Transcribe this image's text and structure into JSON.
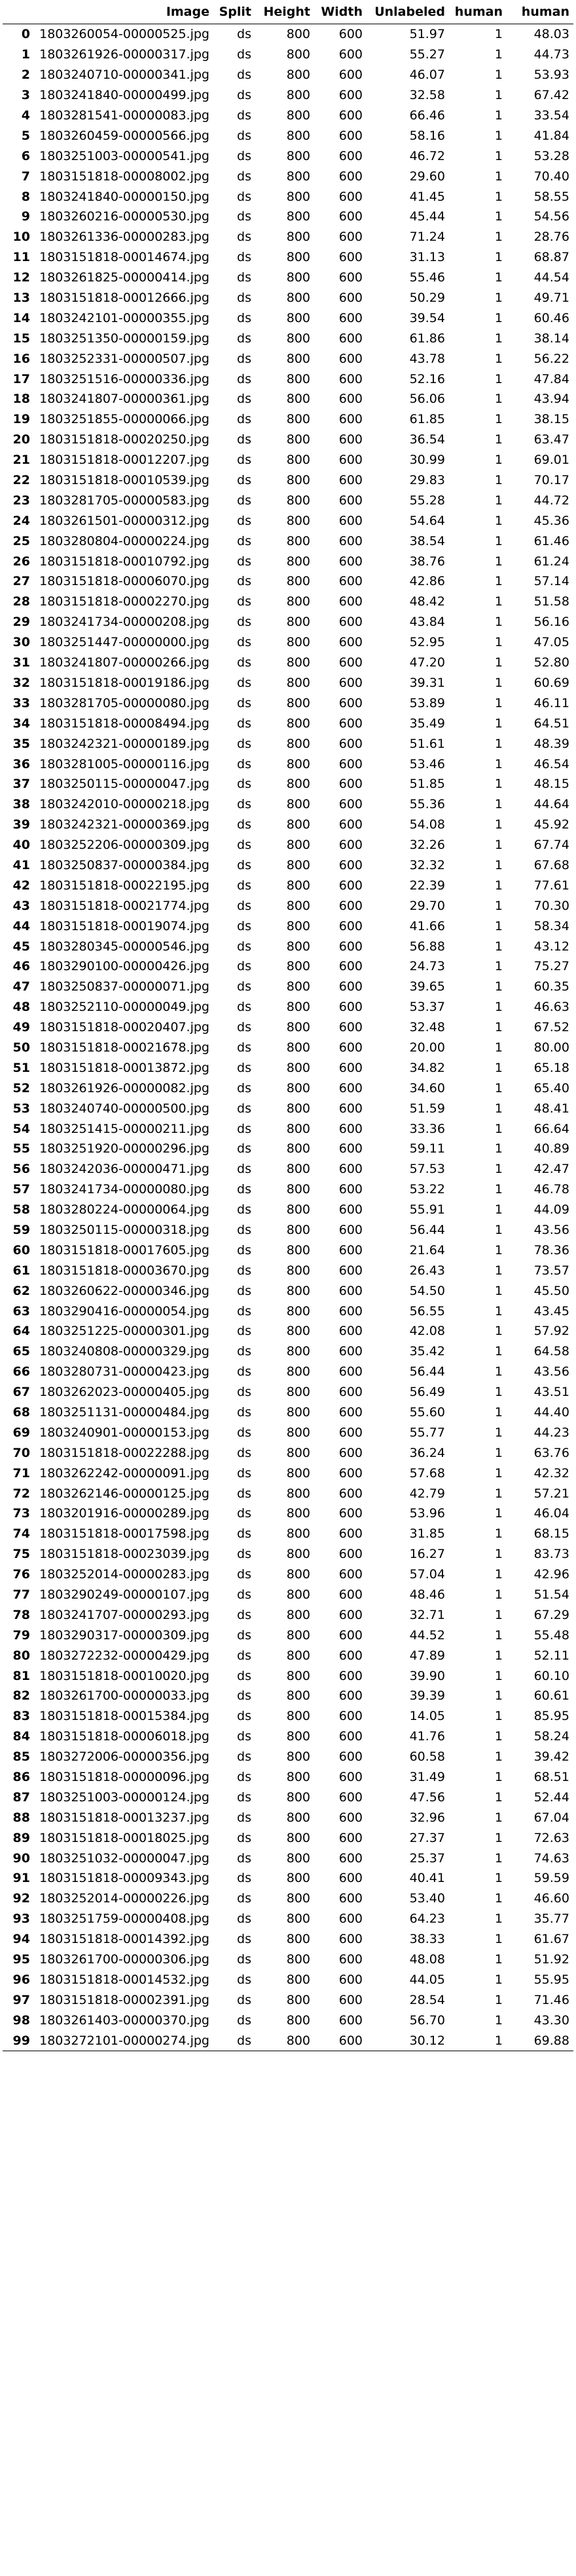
{
  "columns": [
    "",
    "Image",
    "Split",
    "Height",
    "Width",
    "Unlabeled",
    "human",
    "human"
  ],
  "rows": [
    [
      "0",
      "1803260054-00000525.jpg",
      "ds",
      "800",
      "600",
      "51.97",
      "1",
      "48.03"
    ],
    [
      "1",
      "1803261926-00000317.jpg",
      "ds",
      "800",
      "600",
      "55.27",
      "1",
      "44.73"
    ],
    [
      "2",
      "1803240710-00000341.jpg",
      "ds",
      "800",
      "600",
      "46.07",
      "1",
      "53.93"
    ],
    [
      "3",
      "1803241840-00000499.jpg",
      "ds",
      "800",
      "600",
      "32.58",
      "1",
      "67.42"
    ],
    [
      "4",
      "1803281541-00000083.jpg",
      "ds",
      "800",
      "600",
      "66.46",
      "1",
      "33.54"
    ],
    [
      "5",
      "1803260459-00000566.jpg",
      "ds",
      "800",
      "600",
      "58.16",
      "1",
      "41.84"
    ],
    [
      "6",
      "1803251003-00000541.jpg",
      "ds",
      "800",
      "600",
      "46.72",
      "1",
      "53.28"
    ],
    [
      "7",
      "1803151818-00008002.jpg",
      "ds",
      "800",
      "600",
      "29.60",
      "1",
      "70.40"
    ],
    [
      "8",
      "1803241840-00000150.jpg",
      "ds",
      "800",
      "600",
      "41.45",
      "1",
      "58.55"
    ],
    [
      "9",
      "1803260216-00000530.jpg",
      "ds",
      "800",
      "600",
      "45.44",
      "1",
      "54.56"
    ],
    [
      "10",
      "1803261336-00000283.jpg",
      "ds",
      "800",
      "600",
      "71.24",
      "1",
      "28.76"
    ],
    [
      "11",
      "1803151818-00014674.jpg",
      "ds",
      "800",
      "600",
      "31.13",
      "1",
      "68.87"
    ],
    [
      "12",
      "1803261825-00000414.jpg",
      "ds",
      "800",
      "600",
      "55.46",
      "1",
      "44.54"
    ],
    [
      "13",
      "1803151818-00012666.jpg",
      "ds",
      "800",
      "600",
      "50.29",
      "1",
      "49.71"
    ],
    [
      "14",
      "1803242101-00000355.jpg",
      "ds",
      "800",
      "600",
      "39.54",
      "1",
      "60.46"
    ],
    [
      "15",
      "1803251350-00000159.jpg",
      "ds",
      "800",
      "600",
      "61.86",
      "1",
      "38.14"
    ],
    [
      "16",
      "1803252331-00000507.jpg",
      "ds",
      "800",
      "600",
      "43.78",
      "1",
      "56.22"
    ],
    [
      "17",
      "1803251516-00000336.jpg",
      "ds",
      "800",
      "600",
      "52.16",
      "1",
      "47.84"
    ],
    [
      "18",
      "1803241807-00000361.jpg",
      "ds",
      "800",
      "600",
      "56.06",
      "1",
      "43.94"
    ],
    [
      "19",
      "1803251855-00000066.jpg",
      "ds",
      "800",
      "600",
      "61.85",
      "1",
      "38.15"
    ],
    [
      "20",
      "1803151818-00020250.jpg",
      "ds",
      "800",
      "600",
      "36.54",
      "1",
      "63.47"
    ],
    [
      "21",
      "1803151818-00012207.jpg",
      "ds",
      "800",
      "600",
      "30.99",
      "1",
      "69.01"
    ],
    [
      "22",
      "1803151818-00010539.jpg",
      "ds",
      "800",
      "600",
      "29.83",
      "1",
      "70.17"
    ],
    [
      "23",
      "1803281705-00000583.jpg",
      "ds",
      "800",
      "600",
      "55.28",
      "1",
      "44.72"
    ],
    [
      "24",
      "1803261501-00000312.jpg",
      "ds",
      "800",
      "600",
      "54.64",
      "1",
      "45.36"
    ],
    [
      "25",
      "1803280804-00000224.jpg",
      "ds",
      "800",
      "600",
      "38.54",
      "1",
      "61.46"
    ],
    [
      "26",
      "1803151818-00010792.jpg",
      "ds",
      "800",
      "600",
      "38.76",
      "1",
      "61.24"
    ],
    [
      "27",
      "1803151818-00006070.jpg",
      "ds",
      "800",
      "600",
      "42.86",
      "1",
      "57.14"
    ],
    [
      "28",
      "1803151818-00002270.jpg",
      "ds",
      "800",
      "600",
      "48.42",
      "1",
      "51.58"
    ],
    [
      "29",
      "1803241734-00000208.jpg",
      "ds",
      "800",
      "600",
      "43.84",
      "1",
      "56.16"
    ],
    [
      "30",
      "1803251447-00000000.jpg",
      "ds",
      "800",
      "600",
      "52.95",
      "1",
      "47.05"
    ],
    [
      "31",
      "1803241807-00000266.jpg",
      "ds",
      "800",
      "600",
      "47.20",
      "1",
      "52.80"
    ],
    [
      "32",
      "1803151818-00019186.jpg",
      "ds",
      "800",
      "600",
      "39.31",
      "1",
      "60.69"
    ],
    [
      "33",
      "1803281705-00000080.jpg",
      "ds",
      "800",
      "600",
      "53.89",
      "1",
      "46.11"
    ],
    [
      "34",
      "1803151818-00008494.jpg",
      "ds",
      "800",
      "600",
      "35.49",
      "1",
      "64.51"
    ],
    [
      "35",
      "1803242321-00000189.jpg",
      "ds",
      "800",
      "600",
      "51.61",
      "1",
      "48.39"
    ],
    [
      "36",
      "1803281005-00000116.jpg",
      "ds",
      "800",
      "600",
      "53.46",
      "1",
      "46.54"
    ],
    [
      "37",
      "1803250115-00000047.jpg",
      "ds",
      "800",
      "600",
      "51.85",
      "1",
      "48.15"
    ],
    [
      "38",
      "1803242010-00000218.jpg",
      "ds",
      "800",
      "600",
      "55.36",
      "1",
      "44.64"
    ],
    [
      "39",
      "1803242321-00000369.jpg",
      "ds",
      "800",
      "600",
      "54.08",
      "1",
      "45.92"
    ],
    [
      "40",
      "1803252206-00000309.jpg",
      "ds",
      "800",
      "600",
      "32.26",
      "1",
      "67.74"
    ],
    [
      "41",
      "1803250837-00000384.jpg",
      "ds",
      "800",
      "600",
      "32.32",
      "1",
      "67.68"
    ],
    [
      "42",
      "1803151818-00022195.jpg",
      "ds",
      "800",
      "600",
      "22.39",
      "1",
      "77.61"
    ],
    [
      "43",
      "1803151818-00021774.jpg",
      "ds",
      "800",
      "600",
      "29.70",
      "1",
      "70.30"
    ],
    [
      "44",
      "1803151818-00019074.jpg",
      "ds",
      "800",
      "600",
      "41.66",
      "1",
      "58.34"
    ],
    [
      "45",
      "1803280345-00000546.jpg",
      "ds",
      "800",
      "600",
      "56.88",
      "1",
      "43.12"
    ],
    [
      "46",
      "1803290100-00000426.jpg",
      "ds",
      "800",
      "600",
      "24.73",
      "1",
      "75.27"
    ],
    [
      "47",
      "1803250837-00000071.jpg",
      "ds",
      "800",
      "600",
      "39.65",
      "1",
      "60.35"
    ],
    [
      "48",
      "1803252110-00000049.jpg",
      "ds",
      "800",
      "600",
      "53.37",
      "1",
      "46.63"
    ],
    [
      "49",
      "1803151818-00020407.jpg",
      "ds",
      "800",
      "600",
      "32.48",
      "1",
      "67.52"
    ],
    [
      "50",
      "1803151818-00021678.jpg",
      "ds",
      "800",
      "600",
      "20.00",
      "1",
      "80.00"
    ],
    [
      "51",
      "1803151818-00013872.jpg",
      "ds",
      "800",
      "600",
      "34.82",
      "1",
      "65.18"
    ],
    [
      "52",
      "1803261926-00000082.jpg",
      "ds",
      "800",
      "600",
      "34.60",
      "1",
      "65.40"
    ],
    [
      "53",
      "1803240740-00000500.jpg",
      "ds",
      "800",
      "600",
      "51.59",
      "1",
      "48.41"
    ],
    [
      "54",
      "1803251415-00000211.jpg",
      "ds",
      "800",
      "600",
      "33.36",
      "1",
      "66.64"
    ],
    [
      "55",
      "1803251920-00000296.jpg",
      "ds",
      "800",
      "600",
      "59.11",
      "1",
      "40.89"
    ],
    [
      "56",
      "1803242036-00000471.jpg",
      "ds",
      "800",
      "600",
      "57.53",
      "1",
      "42.47"
    ],
    [
      "57",
      "1803241734-00000080.jpg",
      "ds",
      "800",
      "600",
      "53.22",
      "1",
      "46.78"
    ],
    [
      "58",
      "1803280224-00000064.jpg",
      "ds",
      "800",
      "600",
      "55.91",
      "1",
      "44.09"
    ],
    [
      "59",
      "1803250115-00000318.jpg",
      "ds",
      "800",
      "600",
      "56.44",
      "1",
      "43.56"
    ],
    [
      "60",
      "1803151818-00017605.jpg",
      "ds",
      "800",
      "600",
      "21.64",
      "1",
      "78.36"
    ],
    [
      "61",
      "1803151818-00003670.jpg",
      "ds",
      "800",
      "600",
      "26.43",
      "1",
      "73.57"
    ],
    [
      "62",
      "1803260622-00000346.jpg",
      "ds",
      "800",
      "600",
      "54.50",
      "1",
      "45.50"
    ],
    [
      "63",
      "1803290416-00000054.jpg",
      "ds",
      "800",
      "600",
      "56.55",
      "1",
      "43.45"
    ],
    [
      "64",
      "1803251225-00000301.jpg",
      "ds",
      "800",
      "600",
      "42.08",
      "1",
      "57.92"
    ],
    [
      "65",
      "1803240808-00000329.jpg",
      "ds",
      "800",
      "600",
      "35.42",
      "1",
      "64.58"
    ],
    [
      "66",
      "1803280731-00000423.jpg",
      "ds",
      "800",
      "600",
      "56.44",
      "1",
      "43.56"
    ],
    [
      "67",
      "1803262023-00000405.jpg",
      "ds",
      "800",
      "600",
      "56.49",
      "1",
      "43.51"
    ],
    [
      "68",
      "1803251131-00000484.jpg",
      "ds",
      "800",
      "600",
      "55.60",
      "1",
      "44.40"
    ],
    [
      "69",
      "1803240901-00000153.jpg",
      "ds",
      "800",
      "600",
      "55.77",
      "1",
      "44.23"
    ],
    [
      "70",
      "1803151818-00022288.jpg",
      "ds",
      "800",
      "600",
      "36.24",
      "1",
      "63.76"
    ],
    [
      "71",
      "1803262242-00000091.jpg",
      "ds",
      "800",
      "600",
      "57.68",
      "1",
      "42.32"
    ],
    [
      "72",
      "1803262146-00000125.jpg",
      "ds",
      "800",
      "600",
      "42.79",
      "1",
      "57.21"
    ],
    [
      "73",
      "1803201916-00000289.jpg",
      "ds",
      "800",
      "600",
      "53.96",
      "1",
      "46.04"
    ],
    [
      "74",
      "1803151818-00017598.jpg",
      "ds",
      "800",
      "600",
      "31.85",
      "1",
      "68.15"
    ],
    [
      "75",
      "1803151818-00023039.jpg",
      "ds",
      "800",
      "600",
      "16.27",
      "1",
      "83.73"
    ],
    [
      "76",
      "1803252014-00000283.jpg",
      "ds",
      "800",
      "600",
      "57.04",
      "1",
      "42.96"
    ],
    [
      "77",
      "1803290249-00000107.jpg",
      "ds",
      "800",
      "600",
      "48.46",
      "1",
      "51.54"
    ],
    [
      "78",
      "1803241707-00000293.jpg",
      "ds",
      "800",
      "600",
      "32.71",
      "1",
      "67.29"
    ],
    [
      "79",
      "1803290317-00000309.jpg",
      "ds",
      "800",
      "600",
      "44.52",
      "1",
      "55.48"
    ],
    [
      "80",
      "1803272232-00000429.jpg",
      "ds",
      "800",
      "600",
      "47.89",
      "1",
      "52.11"
    ],
    [
      "81",
      "1803151818-00010020.jpg",
      "ds",
      "800",
      "600",
      "39.90",
      "1",
      "60.10"
    ],
    [
      "82",
      "1803261700-00000033.jpg",
      "ds",
      "800",
      "600",
      "39.39",
      "1",
      "60.61"
    ],
    [
      "83",
      "1803151818-00015384.jpg",
      "ds",
      "800",
      "600",
      "14.05",
      "1",
      "85.95"
    ],
    [
      "84",
      "1803151818-00006018.jpg",
      "ds",
      "800",
      "600",
      "41.76",
      "1",
      "58.24"
    ],
    [
      "85",
      "1803272006-00000356.jpg",
      "ds",
      "800",
      "600",
      "60.58",
      "1",
      "39.42"
    ],
    [
      "86",
      "1803151818-00000096.jpg",
      "ds",
      "800",
      "600",
      "31.49",
      "1",
      "68.51"
    ],
    [
      "87",
      "1803251003-00000124.jpg",
      "ds",
      "800",
      "600",
      "47.56",
      "1",
      "52.44"
    ],
    [
      "88",
      "1803151818-00013237.jpg",
      "ds",
      "800",
      "600",
      "32.96",
      "1",
      "67.04"
    ],
    [
      "89",
      "1803151818-00018025.jpg",
      "ds",
      "800",
      "600",
      "27.37",
      "1",
      "72.63"
    ],
    [
      "90",
      "1803251032-00000047.jpg",
      "ds",
      "800",
      "600",
      "25.37",
      "1",
      "74.63"
    ],
    [
      "91",
      "1803151818-00009343.jpg",
      "ds",
      "800",
      "600",
      "40.41",
      "1",
      "59.59"
    ],
    [
      "92",
      "1803252014-00000226.jpg",
      "ds",
      "800",
      "600",
      "53.40",
      "1",
      "46.60"
    ],
    [
      "93",
      "1803251759-00000408.jpg",
      "ds",
      "800",
      "600",
      "64.23",
      "1",
      "35.77"
    ],
    [
      "94",
      "1803151818-00014392.jpg",
      "ds",
      "800",
      "600",
      "38.33",
      "1",
      "61.67"
    ],
    [
      "95",
      "1803261700-00000306.jpg",
      "ds",
      "800",
      "600",
      "48.08",
      "1",
      "51.92"
    ],
    [
      "96",
      "1803151818-00014532.jpg",
      "ds",
      "800",
      "600",
      "44.05",
      "1",
      "55.95"
    ],
    [
      "97",
      "1803151818-00002391.jpg",
      "ds",
      "800",
      "600",
      "28.54",
      "1",
      "71.46"
    ],
    [
      "98",
      "1803261403-00000370.jpg",
      "ds",
      "800",
      "600",
      "56.70",
      "1",
      "43.30"
    ],
    [
      "99",
      "1803272101-00000274.jpg",
      "ds",
      "800",
      "600",
      "30.12",
      "1",
      "69.88"
    ]
  ]
}
